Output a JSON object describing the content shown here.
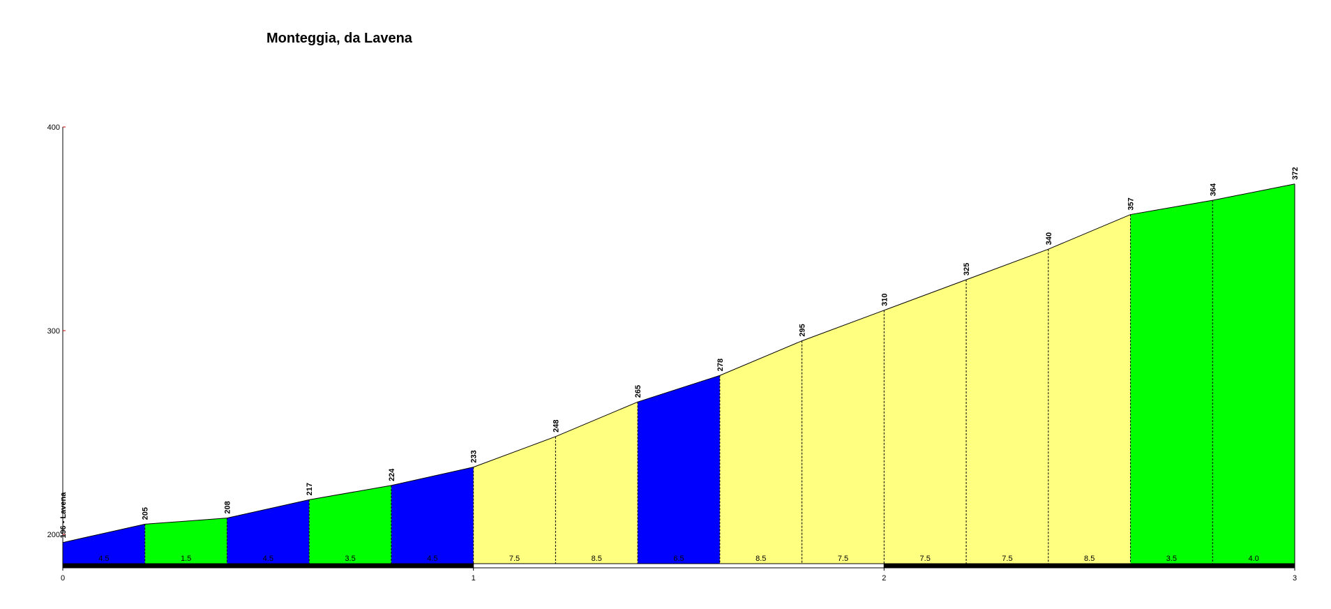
{
  "title": "Monteggia, da Lavena",
  "chart_data": {
    "type": "area",
    "title": "Monteggia, da Lavena",
    "xlabel": "",
    "ylabel": "",
    "xlim": [
      0,
      3
    ],
    "ylim": [
      185,
      400
    ],
    "x_ticks": [
      "0",
      "1",
      "2",
      "3"
    ],
    "y_ticks": [
      "200",
      "300",
      "400"
    ],
    "points": [
      {
        "x": 0.0,
        "y": 196,
        "label": "196 - Lavena"
      },
      {
        "x": 0.2,
        "y": 205,
        "label": "205"
      },
      {
        "x": 0.4,
        "y": 208,
        "label": "208"
      },
      {
        "x": 0.6,
        "y": 217,
        "label": "217"
      },
      {
        "x": 0.8,
        "y": 224,
        "label": "224"
      },
      {
        "x": 1.0,
        "y": 233,
        "label": "233"
      },
      {
        "x": 1.2,
        "y": 248,
        "label": "248"
      },
      {
        "x": 1.4,
        "y": 265,
        "label": "265"
      },
      {
        "x": 1.6,
        "y": 278,
        "label": "278"
      },
      {
        "x": 1.8,
        "y": 295,
        "label": "295"
      },
      {
        "x": 2.0,
        "y": 310,
        "label": "310"
      },
      {
        "x": 2.2,
        "y": 325,
        "label": "325"
      },
      {
        "x": 2.4,
        "y": 340,
        "label": "340"
      },
      {
        "x": 2.6,
        "y": 357,
        "label": "357"
      },
      {
        "x": 2.8,
        "y": 364,
        "label": "364"
      },
      {
        "x": 3.0,
        "y": 372,
        "label": "372"
      }
    ],
    "segments": [
      {
        "grade": "4.5",
        "color": "#0000ff"
      },
      {
        "grade": "1.5",
        "color": "#00ff00"
      },
      {
        "grade": "4.5",
        "color": "#0000ff"
      },
      {
        "grade": "3.5",
        "color": "#00ff00"
      },
      {
        "grade": "4.5",
        "color": "#0000ff"
      },
      {
        "grade": "7.5",
        "color": "#ffff80"
      },
      {
        "grade": "8.5",
        "color": "#ffff80"
      },
      {
        "grade": "6.5",
        "color": "#0000ff"
      },
      {
        "grade": "8.5",
        "color": "#ffff80"
      },
      {
        "grade": "7.5",
        "color": "#ffff80"
      },
      {
        "grade": "7.5",
        "color": "#ffff80"
      },
      {
        "grade": "7.5",
        "color": "#ffff80"
      },
      {
        "grade": "8.5",
        "color": "#ffff80"
      },
      {
        "grade": "3.5",
        "color": "#00ff00"
      },
      {
        "grade": "4.0",
        "color": "#00ff00"
      }
    ],
    "km_bar": [
      {
        "from": 0,
        "to": 1,
        "color": "#000000"
      },
      {
        "from": 1,
        "to": 2,
        "color": "#ffffff"
      },
      {
        "from": 2,
        "to": 3,
        "color": "#000000"
      }
    ],
    "grid": false,
    "legend": "none"
  }
}
